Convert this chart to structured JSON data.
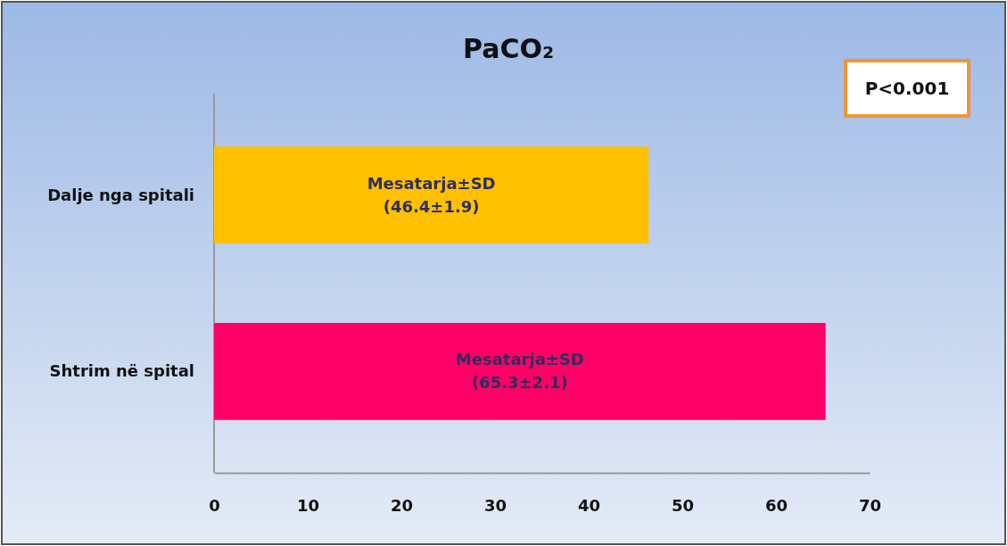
{
  "chart_data": {
    "type": "bar",
    "orientation": "horizontal",
    "title": "PaCO₂",
    "categories": [
      "Dalje nga spitali",
      "Shtrim në spital"
    ],
    "values": [
      46.4,
      65.3
    ],
    "colors": [
      "#ffc000",
      "#ff0066"
    ],
    "value_labels": [
      "Mesatarja±SD\n(46.4±1.9)",
      "Mesatarja±SD\n(65.3±2.1)"
    ],
    "xlim": [
      0,
      70
    ],
    "xticks": [
      0,
      10,
      20,
      30,
      40,
      50,
      60,
      70
    ],
    "annotations": [
      "P<0.001"
    ]
  }
}
